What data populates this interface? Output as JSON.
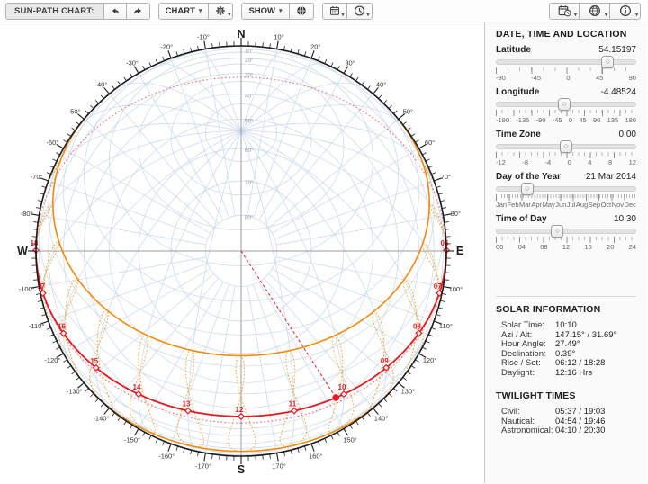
{
  "toolbar": {
    "title": "SUN-PATH CHART:",
    "chart_menu": "CHART",
    "show_menu": "SHOW"
  },
  "panel": {
    "location_header": "DATE, TIME AND LOCATION",
    "sliders": [
      {
        "label": "Latitude",
        "value": "54.15197",
        "percent": 80.08,
        "ticks": [
          "-90",
          "-45",
          "0",
          "45",
          "90"
        ],
        "minor_divisions": 12
      },
      {
        "label": "Longitude",
        "value": "-4.48524",
        "percent": 48.75,
        "ticks": [
          "-180",
          "-135",
          "-90",
          "-45",
          "0",
          "45",
          "90",
          "135",
          "180"
        ],
        "minor_divisions": 24
      },
      {
        "label": "Time Zone",
        "value": "0.00",
        "percent": 50.0,
        "ticks": [
          "-12",
          "-8",
          "-4",
          "0",
          "4",
          "8",
          "12"
        ],
        "minor_divisions": 24
      },
      {
        "label": "Day of the Year",
        "value": "21 Mar 2014",
        "percent": 21.9,
        "ticks": [
          "Jan",
          "Feb",
          "Mar",
          "Apr",
          "May",
          "Jun",
          "Jul",
          "Aug",
          "Sep",
          "Oct",
          "Nov",
          "Dec"
        ],
        "minor_divisions": 52
      },
      {
        "label": "Time of Day",
        "value": "10:30",
        "percent": 43.75,
        "ticks": [
          "00",
          "04",
          "08",
          "12",
          "16",
          "20",
          "24"
        ],
        "minor_divisions": 24
      }
    ],
    "solar_header": "SOLAR INFORMATION",
    "solar_rows": [
      [
        "Solar Time:",
        "10:10"
      ],
      [
        "Azi / Alt:",
        "147.15° / 31.69°"
      ],
      [
        "Hour Angle:",
        "27.49°"
      ],
      [
        "Declination:",
        "0.39°"
      ],
      [
        "Rise / Set:",
        "06:12 / 18:28"
      ],
      [
        "Daylight:",
        "12:16 Hrs"
      ]
    ],
    "twilight_header": "TWILIGHT TIMES",
    "twilight_rows": [
      [
        "Civil:",
        "05:37 / 19:03"
      ],
      [
        "Nautical:",
        "04:54 / 19:46"
      ],
      [
        "Astronomical:",
        "04:10 / 20:30"
      ]
    ]
  },
  "chart": {
    "cardinals": {
      "north": "N",
      "east": "E",
      "south": "S",
      "west": "W"
    },
    "latitude_deg": 54.15197,
    "day_declination_deg": 0.39,
    "solstice_declinations_deg": [
      23.44,
      -23.44
    ],
    "sun_position": {
      "azimuth_deg": 147.15,
      "altitude_deg": 31.69
    },
    "hour_marks": [
      "06",
      "07",
      "08",
      "09",
      "10",
      "11",
      "12",
      "13",
      "14",
      "15",
      "16",
      "17",
      "18"
    ],
    "analemma_hours": [
      4,
      5,
      6,
      7,
      8,
      9,
      10,
      11,
      12,
      13,
      14,
      15,
      16,
      17,
      18,
      19,
      20
    ],
    "altitude_ring_labels": [
      "10°",
      "20°",
      "30°",
      "40°",
      "50°",
      "60°",
      "70°",
      "80°"
    ],
    "azimuth_label_step_deg": 10,
    "colors": {
      "grid_blue": "#c8d6e8",
      "axes_gray": "#9b9b9b",
      "rim_black": "#1b1b1b",
      "label_gray": "#8a95a3",
      "azimuth_label": "#333333",
      "orange_solid": "#ef8a10",
      "orange_dotted": "#f5a12c",
      "red_solid": "#e31b23",
      "red_dotted": "#f26a6a",
      "hour_label_red": "#e31b23"
    }
  }
}
